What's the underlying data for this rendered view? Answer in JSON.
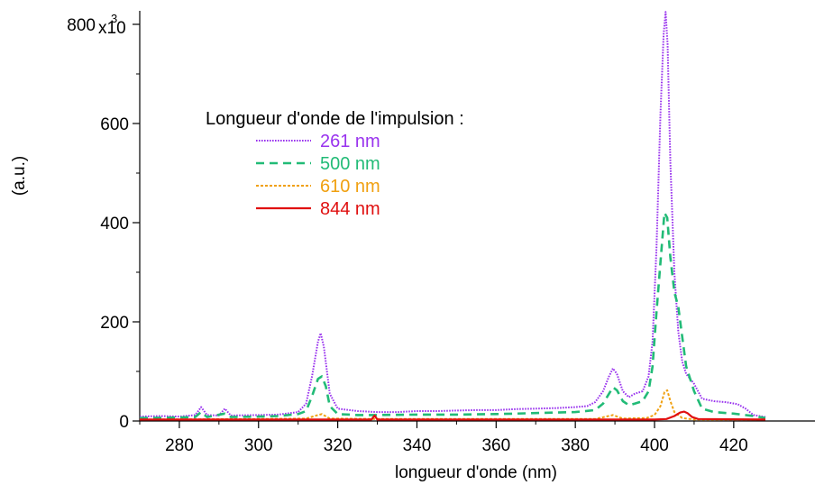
{
  "chart_data": {
    "type": "line",
    "title": "",
    "xlabel": "longueur d'onde (nm)",
    "ylabel": "(a.u.)",
    "xlim": [
      270,
      428
    ],
    "ylim": [
      0,
      830
    ],
    "y_scale_label": "x10",
    "y_scale_exponent": "3",
    "x_ticks": [
      280,
      300,
      320,
      340,
      360,
      380,
      400,
      420
    ],
    "y_ticks": [
      {
        "value": 0,
        "label": "0"
      },
      {
        "value": 200,
        "label": "200"
      },
      {
        "value": 400,
        "label": "400"
      },
      {
        "value": 600,
        "label": "600"
      },
      {
        "value": 800,
        "label": "800"
      }
    ],
    "legend": {
      "title": "Longueur d'onde de l'impulsion :",
      "placement": "upper-left"
    },
    "series": [
      {
        "name": "261 nm",
        "color": "#9933ee",
        "style": "dotted",
        "points": [
          [
            270,
            9
          ],
          [
            275,
            10
          ],
          [
            280,
            9
          ],
          [
            284,
            12
          ],
          [
            285.5,
            28
          ],
          [
            287,
            12
          ],
          [
            290,
            11
          ],
          [
            291.5,
            25
          ],
          [
            293,
            11
          ],
          [
            300,
            12
          ],
          [
            305,
            13
          ],
          [
            310,
            18
          ],
          [
            312,
            35
          ],
          [
            313.5,
            90
          ],
          [
            315,
            160
          ],
          [
            315.7,
            177
          ],
          [
            316.5,
            150
          ],
          [
            318,
            55
          ],
          [
            320,
            25
          ],
          [
            325,
            20
          ],
          [
            330,
            18
          ],
          [
            335,
            18
          ],
          [
            340,
            20
          ],
          [
            345,
            20
          ],
          [
            350,
            21
          ],
          [
            355,
            22
          ],
          [
            360,
            22
          ],
          [
            365,
            24
          ],
          [
            370,
            25
          ],
          [
            375,
            26
          ],
          [
            380,
            28
          ],
          [
            383,
            30
          ],
          [
            385,
            38
          ],
          [
            387,
            60
          ],
          [
            388.5,
            90
          ],
          [
            389.5,
            106
          ],
          [
            390.5,
            95
          ],
          [
            392,
            60
          ],
          [
            393.5,
            48
          ],
          [
            395,
            55
          ],
          [
            397,
            60
          ],
          [
            398.5,
            90
          ],
          [
            399.5,
            160
          ],
          [
            400.5,
            350
          ],
          [
            401.5,
            620
          ],
          [
            402.3,
            780
          ],
          [
            402.8,
            825
          ],
          [
            403.3,
            760
          ],
          [
            404,
            520
          ],
          [
            405,
            300
          ],
          [
            406,
            180
          ],
          [
            407,
            120
          ],
          [
            408,
            95
          ],
          [
            410,
            75
          ],
          [
            412,
            45
          ],
          [
            415,
            40
          ],
          [
            418,
            38
          ],
          [
            421,
            34
          ],
          [
            423,
            25
          ],
          [
            425,
            12
          ],
          [
            428,
            8
          ]
        ]
      },
      {
        "name": "500 nm",
        "color": "#22bb77",
        "style": "dashed",
        "points": [
          [
            270,
            6
          ],
          [
            280,
            7
          ],
          [
            284,
            8
          ],
          [
            285.5,
            18
          ],
          [
            287,
            8
          ],
          [
            291.5,
            15
          ],
          [
            293,
            8
          ],
          [
            300,
            9
          ],
          [
            305,
            10
          ],
          [
            310,
            14
          ],
          [
            312,
            20
          ],
          [
            313.5,
            50
          ],
          [
            315,
            85
          ],
          [
            316,
            90
          ],
          [
            317,
            70
          ],
          [
            318,
            30
          ],
          [
            320,
            14
          ],
          [
            325,
            12
          ],
          [
            330,
            12
          ],
          [
            340,
            13
          ],
          [
            350,
            13
          ],
          [
            360,
            14
          ],
          [
            365,
            15
          ],
          [
            370,
            16
          ],
          [
            375,
            17
          ],
          [
            380,
            18
          ],
          [
            385,
            22
          ],
          [
            387,
            35
          ],
          [
            388.5,
            55
          ],
          [
            389.5,
            68
          ],
          [
            390.5,
            62
          ],
          [
            392,
            40
          ],
          [
            393.5,
            32
          ],
          [
            395,
            35
          ],
          [
            397,
            40
          ],
          [
            398.5,
            60
          ],
          [
            399.5,
            110
          ],
          [
            400.5,
            220
          ],
          [
            401.5,
            320
          ],
          [
            402.5,
            420
          ],
          [
            403.2,
            410
          ],
          [
            404,
            330
          ],
          [
            405,
            260
          ],
          [
            406,
            230
          ],
          [
            407,
            170
          ],
          [
            408,
            110
          ],
          [
            410,
            60
          ],
          [
            412,
            25
          ],
          [
            415,
            18
          ],
          [
            420,
            15
          ],
          [
            425,
            10
          ],
          [
            428,
            6
          ]
        ]
      },
      {
        "name": "610 nm",
        "color": "#f0a010",
        "style": "dotted-dash",
        "points": [
          [
            270,
            3
          ],
          [
            300,
            4
          ],
          [
            312,
            5
          ],
          [
            315,
            12
          ],
          [
            316,
            14
          ],
          [
            318,
            5
          ],
          [
            330,
            4
          ],
          [
            360,
            4
          ],
          [
            385,
            4
          ],
          [
            389.5,
            12
          ],
          [
            392,
            5
          ],
          [
            398,
            6
          ],
          [
            400,
            12
          ],
          [
            401.5,
            30
          ],
          [
            402.5,
            58
          ],
          [
            403.2,
            62
          ],
          [
            404,
            40
          ],
          [
            405,
            18
          ],
          [
            407,
            6
          ],
          [
            410,
            3
          ],
          [
            428,
            3
          ]
        ]
      },
      {
        "name": "844 nm",
        "color": "#e01010",
        "style": "solid",
        "points": [
          [
            270,
            3
          ],
          [
            300,
            3
          ],
          [
            328.5,
            3
          ],
          [
            329.3,
            11
          ],
          [
            330,
            3
          ],
          [
            360,
            3
          ],
          [
            390,
            3
          ],
          [
            400,
            3
          ],
          [
            403,
            4
          ],
          [
            405,
            10
          ],
          [
            406.5,
            17
          ],
          [
            407.5,
            19
          ],
          [
            408.3,
            16
          ],
          [
            409.5,
            8
          ],
          [
            411,
            4
          ],
          [
            428,
            3
          ]
        ]
      }
    ]
  }
}
